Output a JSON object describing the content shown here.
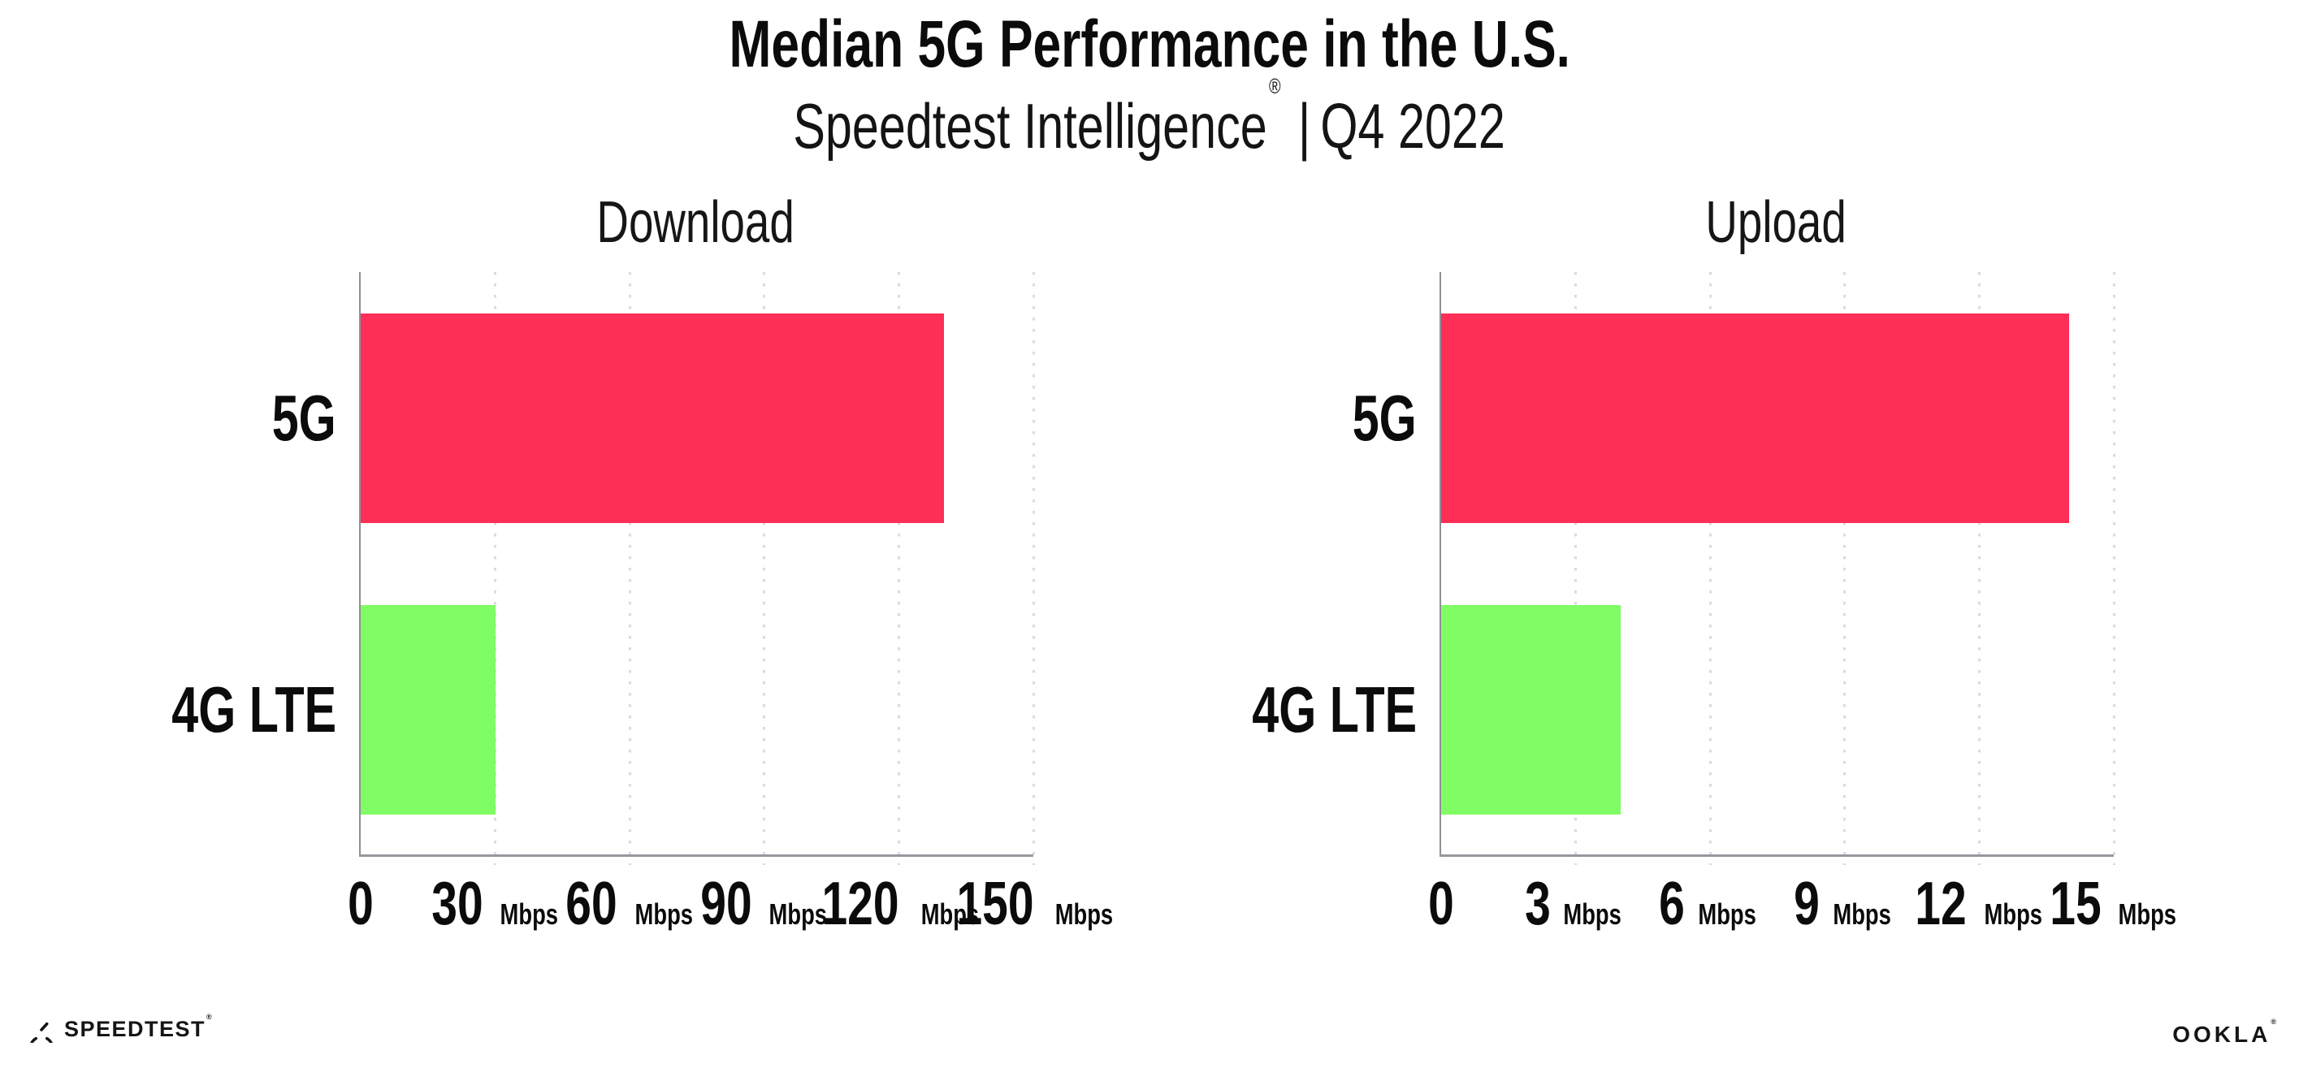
{
  "header": {
    "title": "Median 5G Performance in the U.S.",
    "subtitle": {
      "product": "Speedtest Intelligence",
      "registered_mark": "®",
      "separator": "|",
      "period": "Q4 2022"
    }
  },
  "chart_data": [
    {
      "type": "bar",
      "orientation": "horizontal",
      "title": "Download",
      "categories": [
        "5G",
        "4G LTE"
      ],
      "values": [
        130,
        30
      ],
      "value_unit": "Mbps",
      "xlim": [
        0,
        150
      ],
      "xticks": [
        0,
        30,
        60,
        90,
        120,
        150
      ],
      "xtick_unit": "Mbps",
      "grid": "dotted vertical gridlines at each x tick",
      "legend": "none",
      "bar_colors": [
        "#FF2E56",
        "#80FC64"
      ]
    },
    {
      "type": "bar",
      "orientation": "horizontal",
      "title": "Upload",
      "categories": [
        "5G",
        "4G LTE"
      ],
      "values": [
        14,
        4
      ],
      "value_unit": "Mbps",
      "xlim": [
        0,
        15
      ],
      "xticks": [
        0,
        3,
        6,
        9,
        12,
        15
      ],
      "xtick_unit": "Mbps",
      "grid": "dotted vertical gridlines at each x tick",
      "legend": "none",
      "bar_colors": [
        "#FF2E56",
        "#80FC64"
      ]
    }
  ],
  "footer": {
    "speedtest_wordmark": "SPEEDTEST",
    "speedtest_mark": "®",
    "ookla_wordmark": "OOKLA",
    "ookla_mark": "®"
  },
  "colors": {
    "bar_5g": "#FF2E56",
    "bar_4g_lte": "#80FC64",
    "axis": "#97979E",
    "gridline": "#D8DAE4",
    "text": "#0B0B0B",
    "background": "#FFFFFF"
  }
}
